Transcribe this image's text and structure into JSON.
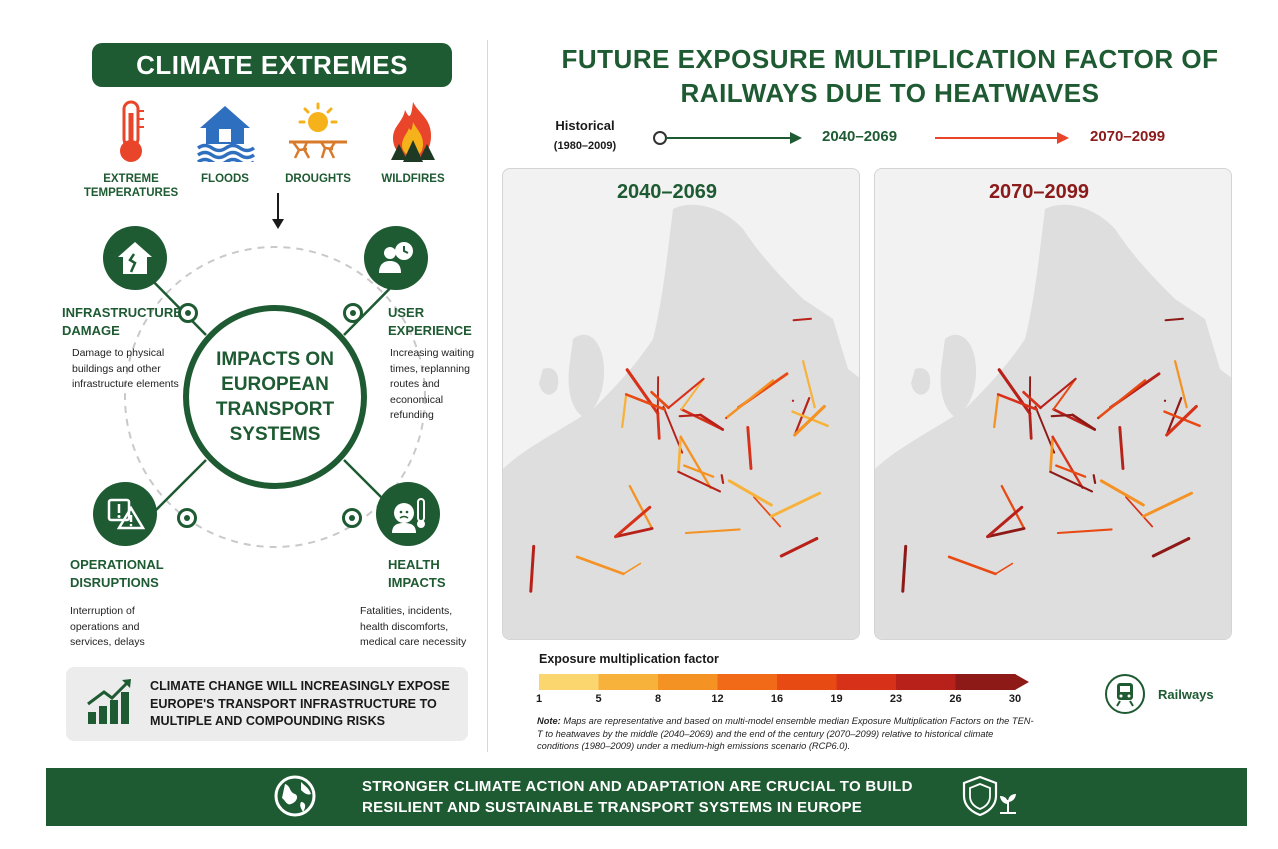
{
  "left": {
    "title": "CLIMATE EXTREMES",
    "hazards": [
      {
        "label": "EXTREME TEMPERATURES",
        "icon": "thermometer-icon"
      },
      {
        "label": "FLOODS",
        "icon": "flood-house-icon"
      },
      {
        "label": "DROUGHTS",
        "icon": "sun-drought-icon"
      },
      {
        "label": "WILDFIRES",
        "icon": "wildfire-icon"
      }
    ],
    "center_text": "IMPACTS ON EUROPEAN TRANSPORT SYSTEMS",
    "impacts": [
      {
        "title": "INFRASTRUCTURE DAMAGE",
        "desc": "Damage to physical buildings and other infrastructure elements",
        "icon": "damaged-house-icon"
      },
      {
        "title": "USER EXPERIENCE",
        "desc": "Increasing waiting times, replanning routes and economical refunding",
        "icon": "user-clock-icon"
      },
      {
        "title": "OPERATIONAL DISRUPTIONS",
        "desc": "Interruption of operations and services, delays",
        "icon": "warning-icon"
      },
      {
        "title": "HEALTH IMPACTS",
        "desc": "Fatalities, incidents, health discomforts, medical care necessity",
        "icon": "sick-person-icon"
      }
    ],
    "bottom_message": "CLIMATE CHANGE WILL INCREASINGLY EXPOSE EUROPE'S TRANSPORT INFRASTRUCTURE TO MULTIPLE AND COMPOUNDING RISKS"
  },
  "right": {
    "title": "FUTURE EXPOSURE MULTIPLICATION FACTOR OF RAILWAYS DUE TO HEATWAVES",
    "timeline": {
      "historical": "Historical",
      "historical_years": "(1980–2009)",
      "mid": "2040–2069",
      "end": "2070–2099"
    },
    "maps": [
      {
        "title": "2040–2069",
        "color": "#1e5a32"
      },
      {
        "title": "2070–2099",
        "color": "#8b1a1a"
      }
    ],
    "legend": {
      "title": "Exposure multiplication factor",
      "ticks": [
        "1",
        "5",
        "8",
        "12",
        "16",
        "19",
        "23",
        "26",
        "30"
      ],
      "colors": [
        "#fbd66e",
        "#f7b23c",
        "#f49224",
        "#f06a18",
        "#e84a14",
        "#d7311a",
        "#b8211a",
        "#8e1a18"
      ]
    },
    "railways_label": "Railways",
    "note_label": "Note:",
    "note": " Maps are representative and based on multi-model ensemble median Exposure Multiplication Factors on the TEN-T to heatwaves by the middle (2040–2069) and the end of the century (2070–2099) relative to historical climate conditions (1980–2009) under a medium-high emissions scenario (RCP6.0)."
  },
  "footer": {
    "text": "STRONGER CLIMATE ACTION AND ADAPTATION ARE CRUCIAL TO BUILD RESILIENT AND SUSTAINABLE TRANSPORT SYSTEMS IN EUROPE"
  },
  "colors": {
    "primary_green": "#1e5a32",
    "dark_red": "#8b1a1a",
    "bright_red": "#e8452a"
  }
}
